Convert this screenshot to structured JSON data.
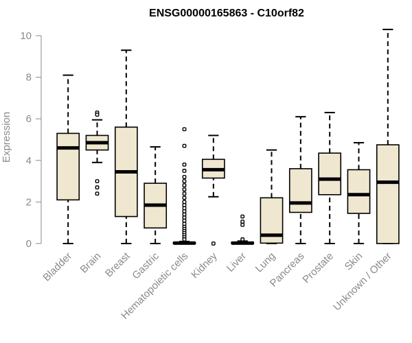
{
  "chart_data": {
    "type": "boxplot",
    "title": "ENSG00000165863 - C10orf82",
    "ylabel": "Expression",
    "xlabel": "",
    "ylim": [
      0,
      10.4
    ],
    "yticks": [
      0,
      2,
      4,
      6,
      8,
      10
    ],
    "grid": false,
    "colors": {
      "box_fill": "#efe7cf",
      "box_stroke": "#000000",
      "axis": "#8a8a8a"
    },
    "categories": [
      "Bladder",
      "Brain",
      "Breast",
      "Gastric",
      "Hematopoietic cells",
      "Kidney",
      "Liver",
      "Lung",
      "Pancreas",
      "Prostate",
      "Skin",
      "Unknown / Other"
    ],
    "boxes": [
      {
        "min": 0,
        "q1": 2.1,
        "median": 4.6,
        "q3": 5.3,
        "max": 8.1,
        "outliers": []
      },
      {
        "min": 3.9,
        "q1": 4.5,
        "median": 4.85,
        "q3": 5.2,
        "max": 5.95,
        "outliers": [
          6.3,
          6.2,
          3.0,
          2.7,
          2.4
        ]
      },
      {
        "min": 0,
        "q1": 1.3,
        "median": 3.45,
        "q3": 5.6,
        "max": 9.3,
        "outliers": []
      },
      {
        "min": 0,
        "q1": 0.75,
        "median": 1.85,
        "q3": 2.9,
        "max": 4.65,
        "outliers": []
      },
      {
        "min": 0,
        "q1": 0,
        "median": 0.02,
        "q3": 0.05,
        "max": 0.1,
        "outliers": [
          5.5,
          4.7,
          3.8,
          3.5,
          3.2,
          3.0,
          2.8,
          2.6,
          2.4,
          2.2,
          2.0,
          1.85,
          1.7,
          1.55,
          1.4,
          1.25,
          1.1,
          0.95,
          0.8,
          0.7,
          0.6,
          0.5,
          0.4,
          0.3,
          0.2
        ]
      },
      {
        "min": 2.25,
        "q1": 3.15,
        "median": 3.55,
        "q3": 4.05,
        "max": 5.2,
        "outliers": [
          0.0
        ]
      },
      {
        "min": 0,
        "q1": 0,
        "median": 0.02,
        "q3": 0.06,
        "max": 0.12,
        "outliers": [
          1.3,
          1.05,
          0.9,
          0.2
        ]
      },
      {
        "min": 0,
        "q1": 0.02,
        "median": 0.4,
        "q3": 2.2,
        "max": 4.5,
        "outliers": []
      },
      {
        "min": 0,
        "q1": 1.5,
        "median": 1.95,
        "q3": 3.6,
        "max": 6.1,
        "outliers": []
      },
      {
        "min": 0,
        "q1": 2.35,
        "median": 3.1,
        "q3": 4.35,
        "max": 6.3,
        "outliers": []
      },
      {
        "min": 0,
        "q1": 1.45,
        "median": 2.35,
        "q3": 3.55,
        "max": 4.85,
        "outliers": []
      },
      {
        "min": 0,
        "q1": 0,
        "median": 2.95,
        "q3": 4.75,
        "max": 10.3,
        "outliers": []
      }
    ]
  }
}
